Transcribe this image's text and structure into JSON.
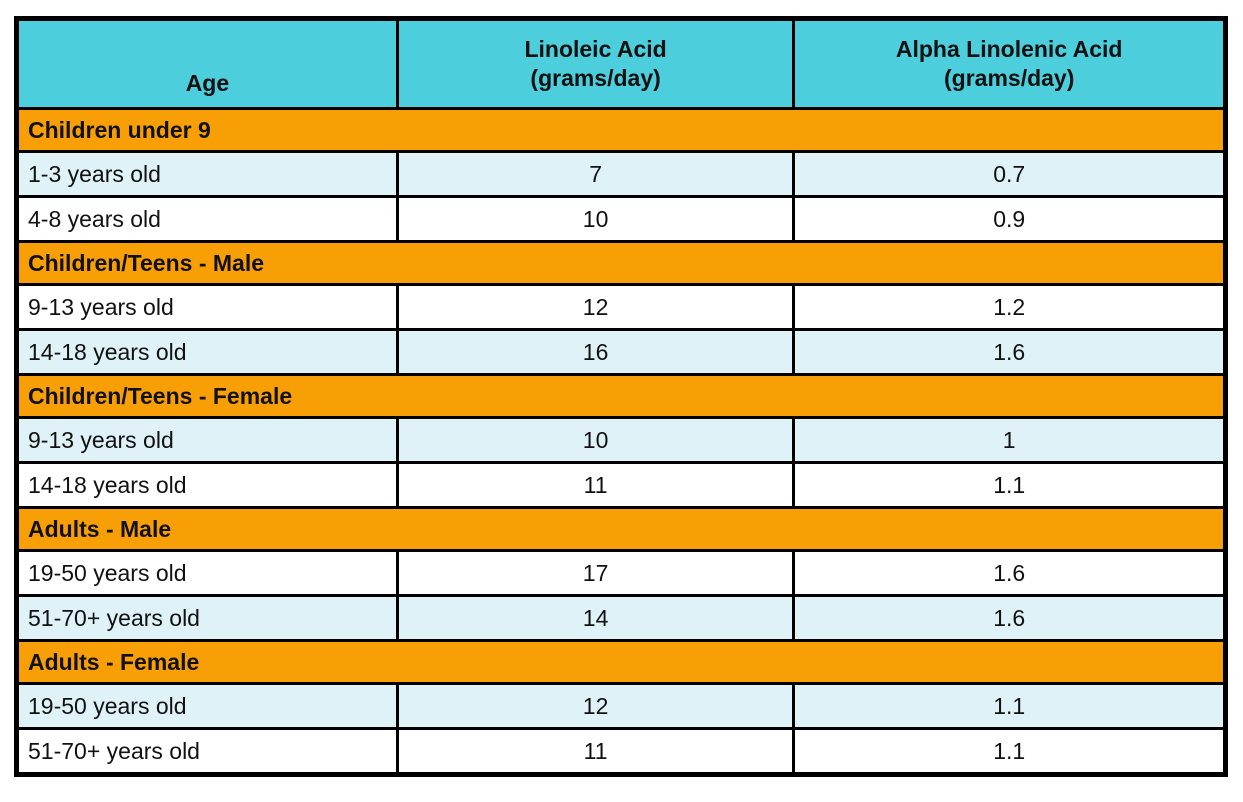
{
  "colors": {
    "header_bg": "#4DCEDC",
    "section_bg": "#F99F06",
    "shaded_row_bg": "#DFF2F8",
    "row_bg": "#FFFFFF",
    "border": "#000000",
    "text": "#111111"
  },
  "chart_data": {
    "type": "table",
    "columns": [
      {
        "title": "Age",
        "unit": ""
      },
      {
        "title": "Linoleic Acid",
        "unit": "(grams/day)"
      },
      {
        "title": "Alpha Linolenic Acid",
        "unit": "(grams/day)"
      }
    ],
    "sections": [
      {
        "label": "Children under 9",
        "rows": [
          {
            "cells": [
              "1-3 years old",
              "7",
              "0.7"
            ]
          },
          {
            "cells": [
              "4-8 years old",
              "10",
              "0.9"
            ]
          }
        ]
      },
      {
        "label": "Children/Teens - Male",
        "rows": [
          {
            "cells": [
              "9-13 years old",
              "12",
              "1.2"
            ]
          },
          {
            "cells": [
              "14-18 years old",
              "16",
              "1.6"
            ]
          }
        ]
      },
      {
        "label": "Children/Teens - Female",
        "rows": [
          {
            "cells": [
              "9-13 years old",
              "10",
              "1"
            ]
          },
          {
            "cells": [
              "14-18 years old",
              "11",
              "1.1"
            ]
          }
        ]
      },
      {
        "label": "Adults -  Male",
        "rows": [
          {
            "cells": [
              "19-50 years old",
              "17",
              "1.6"
            ]
          },
          {
            "cells": [
              "51-70+ years old",
              "14",
              "1.6"
            ]
          }
        ]
      },
      {
        "label": "Adults - Female",
        "rows": [
          {
            "cells": [
              "19-50 years old",
              "12",
              "1.1"
            ]
          },
          {
            "cells": [
              "51-70+ years old",
              "11",
              "1.1"
            ]
          }
        ]
      }
    ]
  }
}
